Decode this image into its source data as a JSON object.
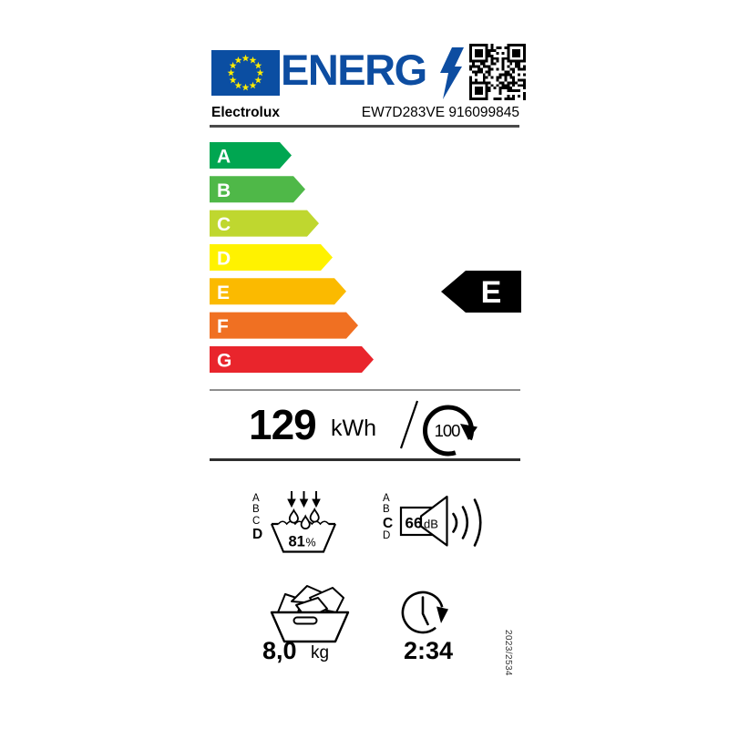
{
  "header": {
    "logo_text": "ENERG",
    "supplier": "Electrolux",
    "model": "EW7D283VE 916099845"
  },
  "scale": [
    {
      "grade": "A",
      "color": "#00a651"
    },
    {
      "grade": "B",
      "color": "#4fb848"
    },
    {
      "grade": "C",
      "color": "#bfd72f"
    },
    {
      "grade": "D",
      "color": "#fff200"
    },
    {
      "grade": "E",
      "color": "#fbba00"
    },
    {
      "grade": "F",
      "color": "#f07022"
    },
    {
      "grade": "G",
      "color": "#e9252c"
    }
  ],
  "rating": {
    "grade": "E"
  },
  "energy": {
    "value": "129",
    "unit": "kWh",
    "per_cycles": "100"
  },
  "spin": {
    "letters": [
      "A",
      "B",
      "C",
      "D"
    ],
    "active": "D",
    "value": "81",
    "unit": "%"
  },
  "noise": {
    "letters": [
      "A",
      "B",
      "C",
      "D"
    ],
    "active": "C",
    "value": "66",
    "unit": "dB"
  },
  "capacity": {
    "value": "8,0",
    "unit": "kg"
  },
  "duration": {
    "value": "2:34"
  },
  "regulation": "2023/2534",
  "colors": {
    "brand_blue": "#0d4da1",
    "flag_blue": "#0b4ea2",
    "star_yellow": "#ffec00"
  }
}
